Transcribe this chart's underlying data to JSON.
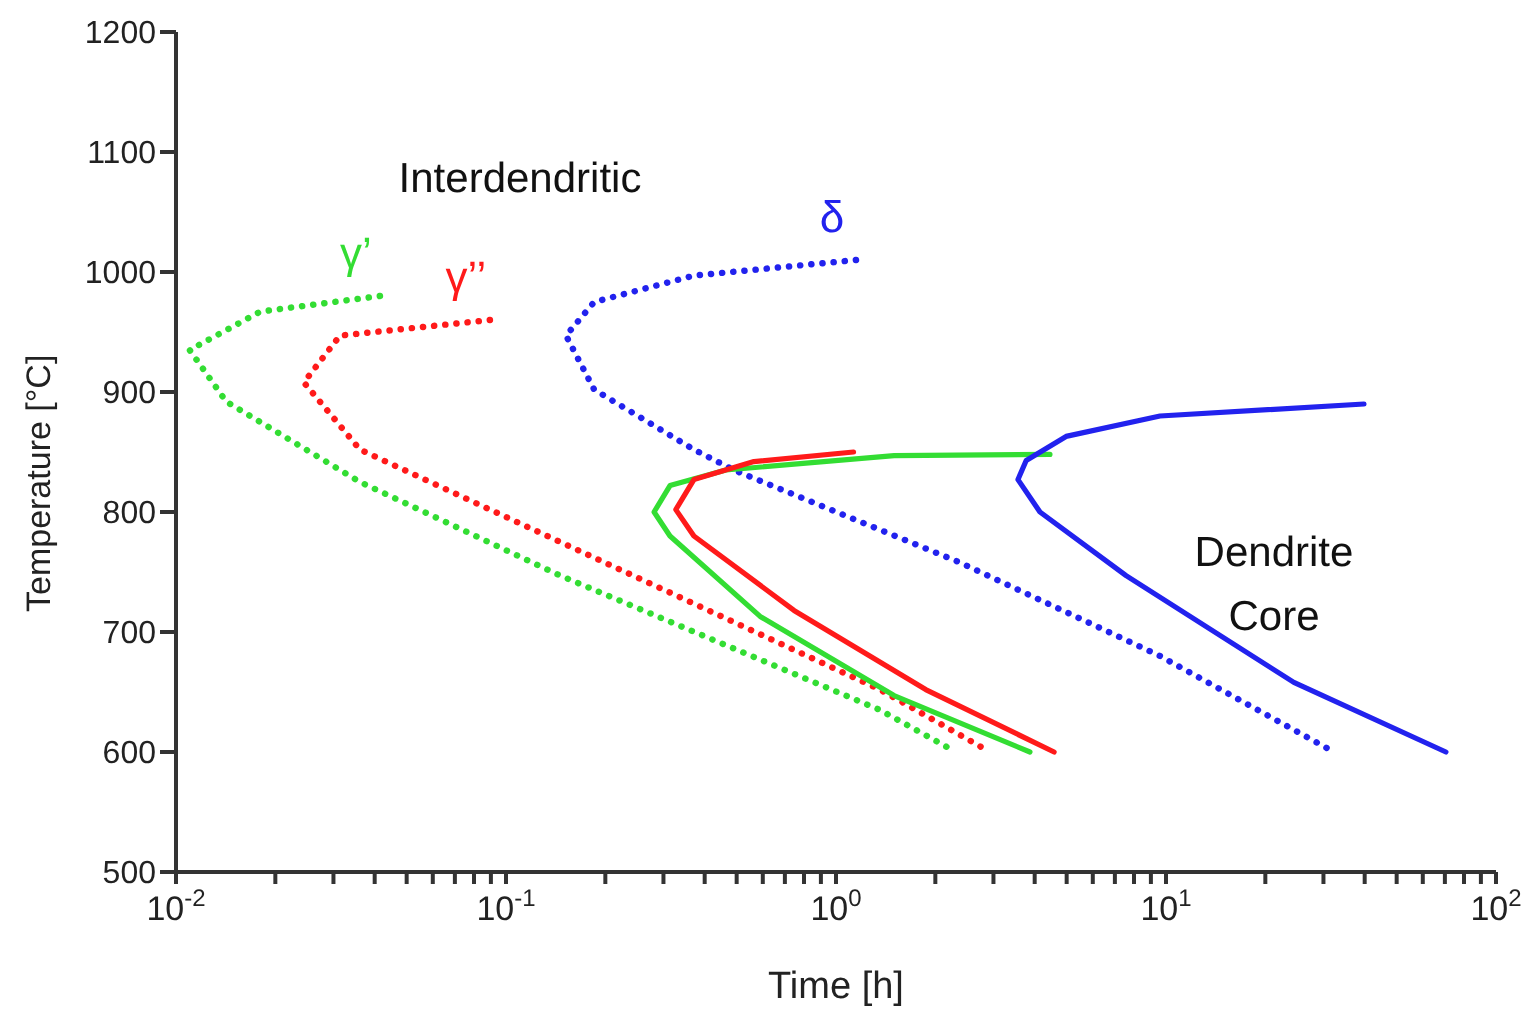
{
  "chart_data": {
    "type": "line",
    "xlabel": "Time [h]",
    "ylabel": "Temperature [°C]",
    "log": "x",
    "marker": "none",
    "annotations": [
      "Interdendritic",
      "Dendrite Core"
    ],
    "xlim": [
      0.01,
      100
    ],
    "ylim": [
      500,
      1200
    ],
    "xticks": [
      {
        "value": 0.01,
        "label": "10$^{-2}$"
      },
      {
        "value": 0.02,
        "label": null
      },
      {
        "value": 0.03,
        "label": null
      },
      {
        "value": 0.04,
        "label": null
      },
      {
        "value": 0.05,
        "label": null
      },
      {
        "value": 0.06,
        "label": null
      },
      {
        "value": 0.07,
        "label": null
      },
      {
        "value": 0.08,
        "label": null
      },
      {
        "value": 0.09,
        "label": null
      },
      {
        "value": 0.1,
        "label": "10$^{-1}$"
      },
      {
        "value": 0.2,
        "label": null
      },
      {
        "value": 0.3,
        "label": null
      },
      {
        "value": 0.4,
        "label": null
      },
      {
        "value": 0.5,
        "label": null
      },
      {
        "value": 0.6,
        "label": null
      },
      {
        "value": 0.7,
        "label": null
      },
      {
        "value": 0.8,
        "label": null
      },
      {
        "value": 0.9,
        "label": null
      },
      {
        "value": 1,
        "label": "10$^{0}$"
      },
      {
        "value": 2,
        "label": null
      },
      {
        "value": 3,
        "label": null
      },
      {
        "value": 4,
        "label": null
      },
      {
        "value": 5,
        "label": null
      },
      {
        "value": 6,
        "label": null
      },
      {
        "value": 7,
        "label": null
      },
      {
        "value": 8,
        "label": null
      },
      {
        "value": 9,
        "label": null
      },
      {
        "value": 10,
        "label": "10$^{1}$"
      },
      {
        "value": 20,
        "label": null
      },
      {
        "value": 30,
        "label": null
      },
      {
        "value": 40,
        "label": null
      },
      {
        "value": 50,
        "label": null
      },
      {
        "value": 60,
        "label": null
      },
      {
        "value": 70,
        "label": null
      },
      {
        "value": 80,
        "label": null
      },
      {
        "value": 90,
        "label": null
      },
      {
        "value": 100,
        "label": "10$^{2}$"
      }
    ],
    "yticks": [
      500,
      600,
      700,
      800,
      900,
      1000,
      1100,
      1200
    ],
    "series": [
      {
        "name": "γ’",
        "color": "#33dd33",
        "line_style": "dotted",
        "x": [
          0.0415,
          0.018,
          0.011,
          0.0142,
          0.0361,
          0.146,
          1.36,
          2.31
        ],
        "values": [
          980,
          967,
          935,
          892,
          825,
          747,
          635,
          600
        ]
      },
      {
        "name": "γ’’",
        "color": "#ff1a1a",
        "line_style": "dotted",
        "x": [
          0.0894,
          0.0314,
          0.0244,
          0.0361,
          0.146,
          1.36,
          2.93
        ],
        "values": [
          960,
          947,
          908,
          852,
          775,
          652,
          600
        ]
      },
      {
        "name": "δ",
        "color": "#2222ee",
        "line_style": "dotted",
        "x": [
          1.15,
          0.371,
          0.185,
          0.152,
          0.185,
          0.371,
          0.49,
          2.37,
          9.59,
          32.3
        ],
        "values": [
          1010,
          997,
          975,
          947,
          902,
          852,
          835,
          758,
          680,
          600
        ]
      },
      {
        "color": "#33dd33",
        "line_style": "solid",
        "x": [
          4.45,
          1.5,
          0.464,
          0.314,
          0.281,
          0.314,
          0.589,
          1.5,
          3.87
        ],
        "values": [
          848,
          847,
          835,
          822,
          800,
          780,
          713,
          647,
          600
        ]
      },
      {
        "color": "#ff1a1a",
        "line_style": "solid",
        "x": [
          1.13,
          0.564,
          0.371,
          0.327,
          0.371,
          0.746,
          1.87,
          4.58
        ],
        "values": [
          850,
          842,
          827,
          802,
          780,
          718,
          652,
          600
        ]
      },
      {
        "color": "#2222ee",
        "line_style": "solid",
        "x": [
          39.8,
          9.59,
          4.98,
          3.77,
          3.56,
          4.15,
          7.57,
          24.4,
          70.5
        ],
        "values": [
          890,
          880,
          863,
          843,
          827,
          800,
          747,
          658,
          600
        ]
      }
    ]
  }
}
